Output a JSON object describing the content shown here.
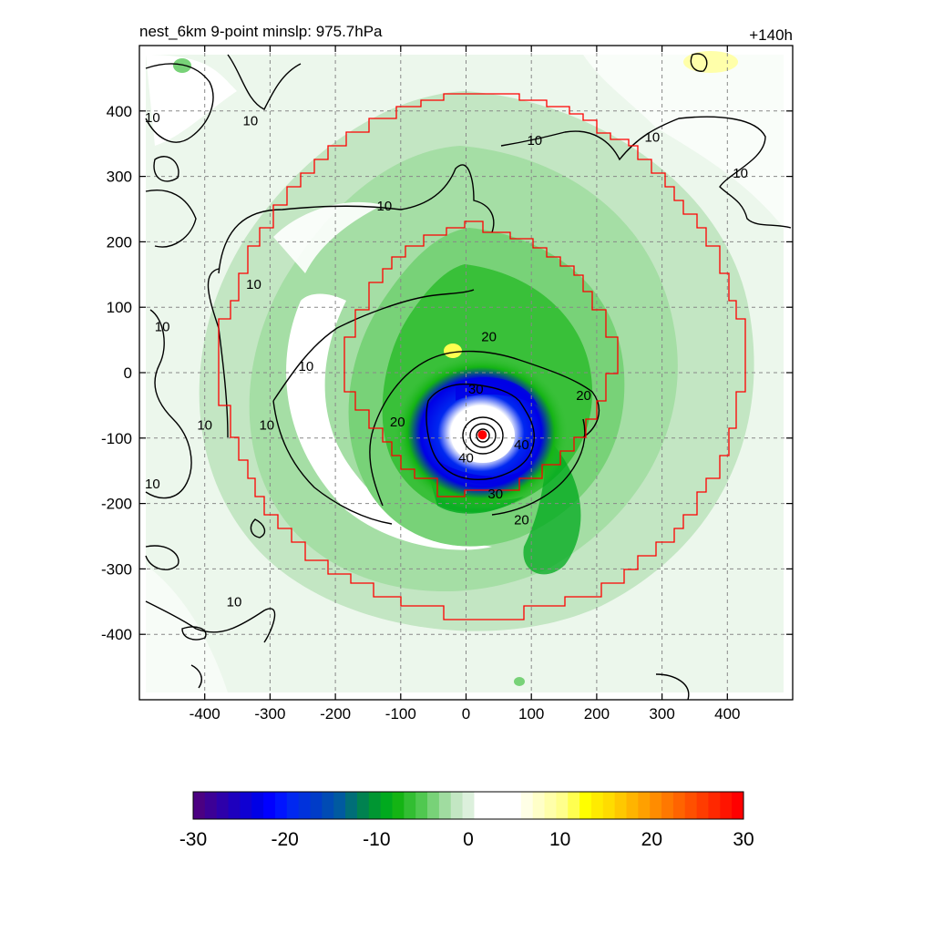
{
  "header": {
    "title": "nest_6km  9-point minslp: 975.7hPa",
    "forecast_hour": "+140h"
  },
  "chart_data": {
    "type": "heatmap",
    "title": "nest_6km  9-point minslp: 975.7hPa",
    "annotation": "+140h",
    "xlim": [
      -500,
      500
    ],
    "ylim": [
      -500,
      500
    ],
    "x_ticks": [
      -400,
      -300,
      -200,
      -100,
      0,
      100,
      200,
      300,
      400
    ],
    "y_ticks": [
      400,
      300,
      200,
      100,
      0,
      -100,
      -200,
      -300,
      -400
    ],
    "grid": true,
    "grid_style": "dashed",
    "center_marker": {
      "x": 25,
      "y": -95,
      "color": "#ff0000"
    },
    "contour_labels": [
      {
        "text": "10",
        "x": -480,
        "y": 390
      },
      {
        "text": "10",
        "x": -330,
        "y": 385
      },
      {
        "text": "10",
        "x": 105,
        "y": 355
      },
      {
        "text": "10",
        "x": 285,
        "y": 360
      },
      {
        "text": "10",
        "x": 420,
        "y": 305
      },
      {
        "text": "10",
        "x": -125,
        "y": 255
      },
      {
        "text": "10",
        "x": -325,
        "y": 135
      },
      {
        "text": "10",
        "x": -465,
        "y": 70
      },
      {
        "text": "10",
        "x": -245,
        "y": 10
      },
      {
        "text": "10",
        "x": -400,
        "y": -80
      },
      {
        "text": "10",
        "x": -305,
        "y": -80
      },
      {
        "text": "10",
        "x": -480,
        "y": -170
      },
      {
        "text": "10",
        "x": -355,
        "y": -350
      },
      {
        "text": "20",
        "x": 35,
        "y": 55
      },
      {
        "text": "20",
        "x": 180,
        "y": -35
      },
      {
        "text": "20",
        "x": -105,
        "y": -75
      },
      {
        "text": "20",
        "x": 85,
        "y": -225
      },
      {
        "text": "30",
        "x": 15,
        "y": -25
      },
      {
        "text": "30",
        "x": 45,
        "y": -185
      },
      {
        "text": "40",
        "x": 85,
        "y": -110
      },
      {
        "text": "40",
        "x": 0,
        "y": -130
      }
    ],
    "colorbar": {
      "min": -30,
      "max": 30,
      "tick_values": [
        -30,
        -20,
        -10,
        0,
        10,
        20,
        30
      ],
      "tick_labels": [
        "-30",
        "-20",
        "-10",
        "0",
        "10",
        "20",
        "30"
      ],
      "colors": [
        "#4b0082",
        "#3c0096",
        "#2d00aa",
        "#1e00be",
        "#0f00d2",
        "#0000e6",
        "#0000ff",
        "#0014ff",
        "#0028f0",
        "#0032dc",
        "#003cc8",
        "#004bb4",
        "#005aa0",
        "#006e78",
        "#008250",
        "#009632",
        "#00aa1e",
        "#14b414",
        "#32be32",
        "#50c850",
        "#78d278",
        "#a0dca0",
        "#c3e6c3",
        "#dcf0dc",
        "#ffffff",
        "#ffffff",
        "#ffffff",
        "#ffffff",
        "#ffffe6",
        "#ffffc8",
        "#ffffaa",
        "#ffff8c",
        "#ffff50",
        "#ffff00",
        "#ffeb00",
        "#ffdc00",
        "#ffc800",
        "#ffb400",
        "#ffa000",
        "#ff8c00",
        "#ff7800",
        "#ff6400",
        "#ff5000",
        "#ff3c00",
        "#ff2800",
        "#ff1400",
        "#ff0000"
      ]
    }
  }
}
